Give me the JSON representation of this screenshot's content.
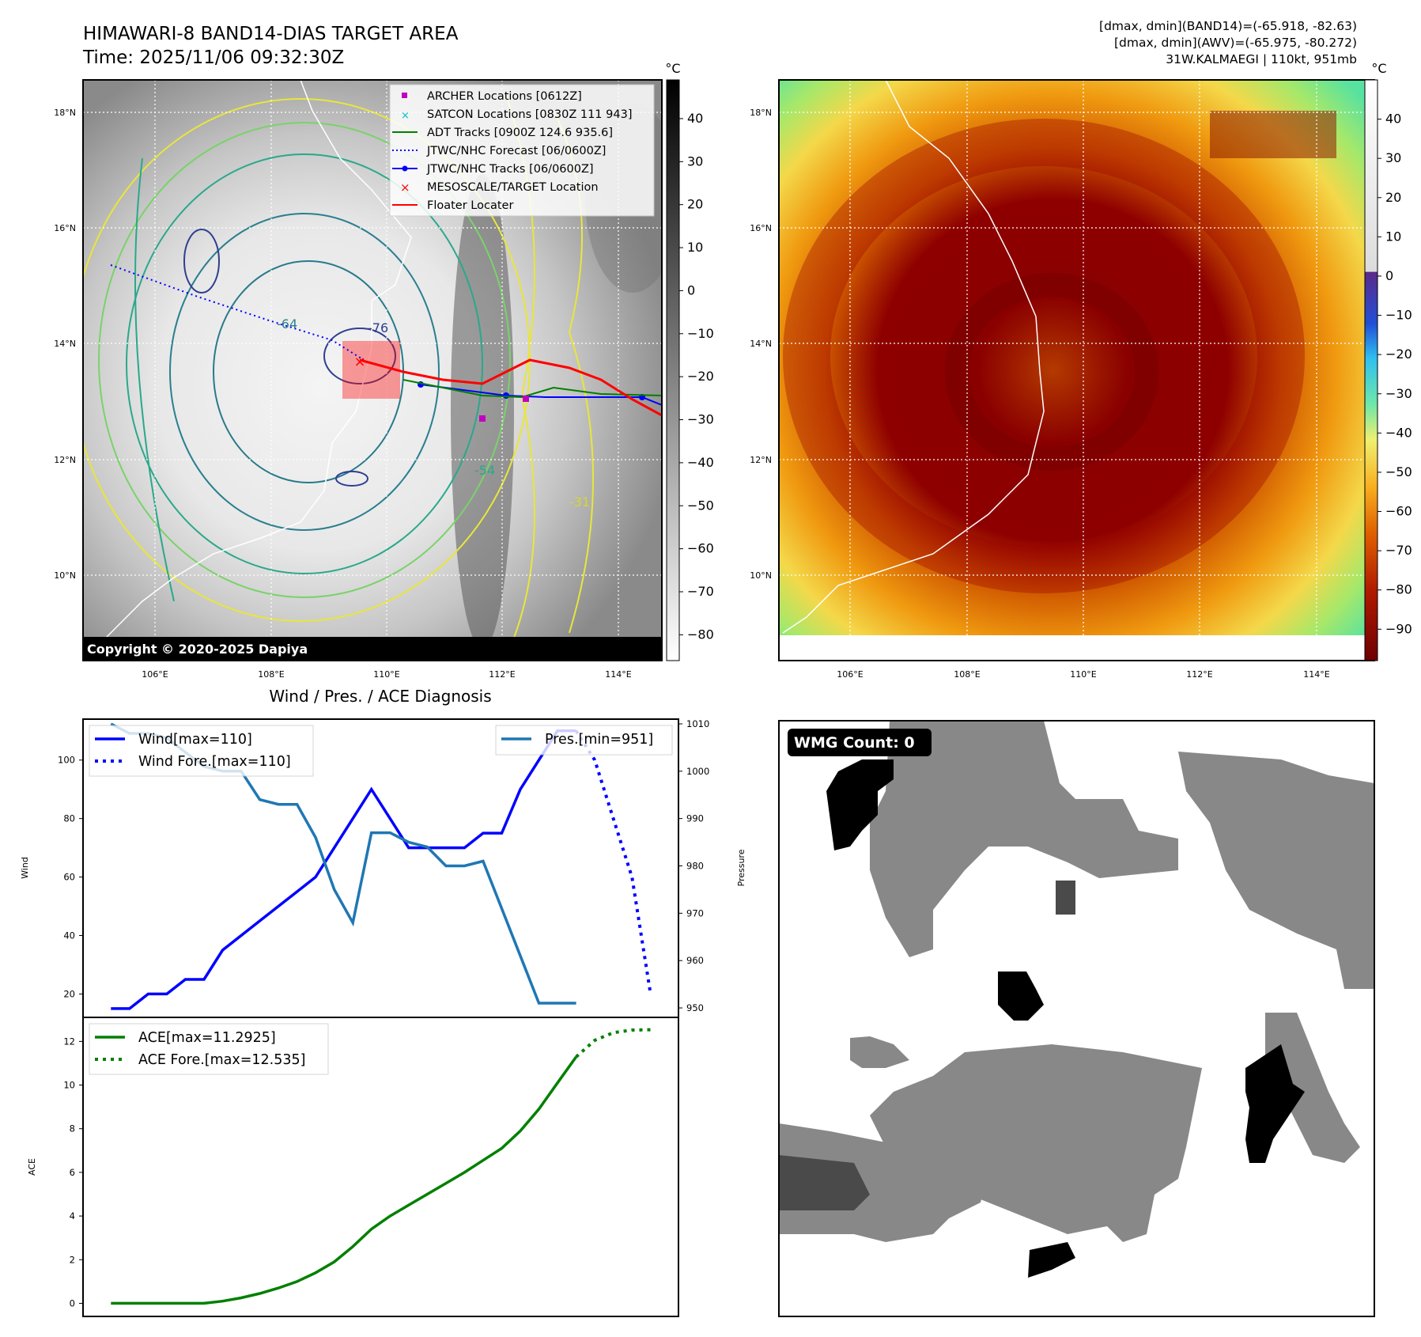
{
  "header": {
    "title_line1": "HIMAWARI-8 BAND14-DIAS TARGET AREA",
    "title_line2": "Time: 2025/11/06 09:32:30Z",
    "info_line1": "[dmax, dmin](BAND14)=(-65.918, -82.63)",
    "info_line2": "[dmax, dmin](AWV)=(-65.975, -80.272)",
    "info_line3": "31W.KALMAEGI | 110kt, 951mb"
  },
  "maps": {
    "lat_labels": [
      "18°N",
      "16°N",
      "14°N",
      "12°N",
      "10°N"
    ],
    "lon_labels": [
      "106°E",
      "108°E",
      "110°E",
      "112°E",
      "114°E"
    ],
    "copyright": "Copyright © 2020-2025 Dapiya",
    "contour_labels": [
      "-76",
      "-64",
      "-54",
      "-31"
    ],
    "unit": "°C"
  },
  "colorbar_gray": {
    "unit": "°C",
    "ticks": [
      "40",
      "30",
      "20",
      "10",
      "0",
      "−10",
      "−20",
      "−30",
      "−40",
      "−50",
      "−60",
      "−70",
      "−80"
    ]
  },
  "colorbar_color": {
    "unit": "°C",
    "ticks": [
      "40",
      "30",
      "20",
      "10",
      "0",
      "−10",
      "−20",
      "−30",
      "−40",
      "−50",
      "−60",
      "−70",
      "−80",
      "−90"
    ]
  },
  "legend_map": {
    "items": [
      {
        "label": "ARCHER Locations [0612Z]",
        "color": "#c000c0"
      },
      {
        "label": "SATCON Locations [0830Z 111 943]",
        "color": "#00c0c0"
      },
      {
        "label": "ADT Tracks [0900Z 124.6 935.6]",
        "color": "#008000"
      },
      {
        "label": "JTWC/NHC Forecast [06/0600Z]",
        "color": "#0000ff"
      },
      {
        "label": "JTWC/NHC Tracks [06/0600Z]",
        "color": "#0000ff"
      },
      {
        "label": "MESOSCALE/TARGET Location",
        "color": "#ff0000"
      },
      {
        "label": "Floater Locater",
        "color": "#ff0000"
      }
    ]
  },
  "diag": {
    "title": "Wind / Pres. / ACE Diagnosis",
    "wind_legend": "Wind[max=110]",
    "wind_fore_legend": "Wind Fore.[max=110]",
    "pres_legend": "Pres.[min=951]",
    "ace_legend": "ACE[max=11.2925]",
    "ace_fore_legend": "ACE Fore.[max=12.535]",
    "ylabel_wind": "Wind",
    "ylabel_pres": "Pressure",
    "ylabel_ace": "ACE",
    "wind_ticks": [
      "100",
      "80",
      "60",
      "40",
      "20"
    ],
    "pres_ticks": [
      "1010",
      "1000",
      "990",
      "980",
      "970",
      "960",
      "950"
    ],
    "ace_ticks": [
      "12",
      "10",
      "8",
      "6",
      "4",
      "2",
      "0"
    ]
  },
  "wmg": {
    "label": "WMG Count: 0"
  },
  "chart_data": [
    {
      "type": "line",
      "title": "Wind / Pres. / ACE Diagnosis",
      "xlabel": "",
      "ylabel": "Wind",
      "ylim": [
        12,
        114
      ],
      "y2label": "Pressure",
      "y2lim": [
        948,
        1011
      ],
      "series": [
        {
          "name": "Wind[max=110]",
          "x": [
            0,
            1,
            2,
            3,
            4,
            5,
            6,
            7,
            8,
            9,
            10,
            11,
            12,
            13,
            14,
            15,
            16,
            17,
            18,
            19,
            20,
            21,
            22,
            23,
            24,
            25
          ],
          "values": [
            15,
            15,
            20,
            20,
            25,
            25,
            35,
            40,
            45,
            50,
            55,
            60,
            70,
            80,
            90,
            80,
            70,
            70,
            70,
            70,
            75,
            75,
            90,
            100,
            110,
            110
          ]
        },
        {
          "name": "Wind Fore.[max=110]",
          "x": [
            25,
            26,
            27,
            28,
            29
          ],
          "values": [
            110,
            100,
            80,
            60,
            20
          ]
        },
        {
          "name": "Pres.[min=951]",
          "x": [
            0,
            1,
            2,
            3,
            4,
            5,
            6,
            7,
            8,
            9,
            10,
            11,
            12,
            13,
            14,
            15,
            16,
            17,
            18,
            19,
            20,
            21,
            22,
            23,
            24,
            25
          ],
          "values": [
            1010,
            1008,
            1008,
            1007,
            1004,
            1001,
            1000,
            1000,
            994,
            993,
            993,
            986,
            975,
            968,
            987,
            987,
            985,
            984,
            980,
            980,
            981,
            971,
            961,
            951,
            951,
            951
          ]
        }
      ]
    },
    {
      "type": "line",
      "title": "",
      "xlabel": "",
      "ylabel": "ACE",
      "ylim": [
        -0.6,
        13.1
      ],
      "series": [
        {
          "name": "ACE[max=11.2925]",
          "x": [
            0,
            1,
            2,
            3,
            4,
            5,
            6,
            7,
            8,
            9,
            10,
            11,
            12,
            13,
            14,
            15,
            16,
            17,
            18,
            19,
            20,
            21,
            22,
            23,
            24,
            25
          ],
          "values": [
            0,
            0,
            0,
            0,
            0,
            0,
            0.1,
            0.25,
            0.45,
            0.7,
            1.0,
            1.4,
            1.9,
            2.6,
            3.4,
            4.0,
            4.5,
            5.0,
            5.5,
            6.0,
            6.55,
            7.1,
            7.9,
            8.9,
            10.1,
            11.29
          ]
        },
        {
          "name": "ACE Fore.[max=12.535]",
          "x": [
            25,
            26,
            27,
            28,
            29
          ],
          "values": [
            11.29,
            12.05,
            12.4,
            12.52,
            12.535
          ]
        }
      ]
    }
  ]
}
